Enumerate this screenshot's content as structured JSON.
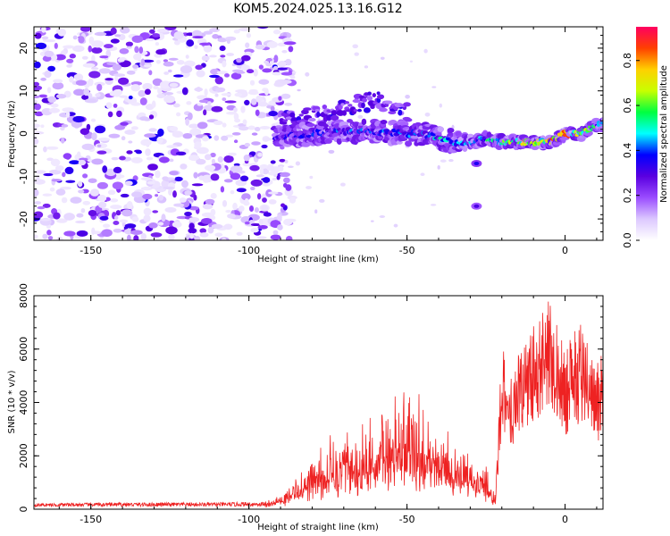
{
  "title": "KOM5.2024.025.13.16.G12",
  "chart_data": [
    {
      "type": "heatmap",
      "xlabel": "Height of straight line (km)",
      "ylabel": "Frequency (Hz)",
      "xlim": [
        -168,
        12
      ],
      "ylim": [
        -25,
        25
      ],
      "x_ticks": [
        -150,
        -100,
        -50,
        0
      ],
      "y_ticks": [
        -20,
        -10,
        0,
        10,
        20
      ],
      "colorbar": {
        "label": "Normalized spectral amplitude",
        "range": [
          0,
          0.95
        ],
        "ticks": [
          "0.0",
          "0.2",
          "0.4",
          "0.6",
          "0.8"
        ],
        "colors": [
          "#ffffff",
          "#dcc8ff",
          "#9a4cff",
          "#5a00e0",
          "#0000ff",
          "#00ffff",
          "#00ff40",
          "#c8ff00",
          "#ffd000",
          "#ff4000",
          "#ff0060"
        ]
      },
      "signal_ridge": {
        "x": [
          -92,
          -80,
          -70,
          -60,
          -50,
          -45,
          -40,
          -35,
          -30,
          -25,
          -20,
          -15,
          -10,
          -5,
          0,
          5,
          10
        ],
        "freq": [
          -1,
          0,
          0.5,
          0.5,
          0,
          0,
          -1,
          -2,
          -2.5,
          -1,
          -2,
          -2,
          -2,
          -2,
          0,
          0,
          2
        ],
        "amplitude": [
          0.35,
          0.4,
          0.45,
          0.45,
          0.45,
          0.5,
          0.55,
          0.5,
          0.45,
          0.6,
          0.65,
          0.75,
          0.85,
          0.9,
          0.95,
          0.7,
          0.6
        ]
      },
      "upper_branch": {
        "x": [
          -90,
          -80,
          -70,
          -60,
          -50
        ],
        "freq": [
          3,
          4,
          6,
          8,
          5
        ]
      },
      "isolated_blobs": [
        {
          "x": -28,
          "freq": -17,
          "amplitude": 0.3
        },
        {
          "x": -28,
          "freq": -7,
          "amplitude": 0.35
        }
      ],
      "noise_region_x": [
        -168,
        -92
      ]
    },
    {
      "type": "line",
      "xlabel": "Height of straight line (km)",
      "ylabel": "SNR (10 * v/v)",
      "xlim": [
        -168,
        12
      ],
      "ylim": [
        0,
        8000
      ],
      "x_ticks": [
        -150,
        -100,
        -50,
        0
      ],
      "y_ticks": [
        0,
        2000,
        4000,
        6000,
        8000
      ],
      "color": "#ee2222",
      "envelope": {
        "x": [
          -168,
          -140,
          -110,
          -95,
          -88,
          -80,
          -70,
          -60,
          -55,
          -50,
          -45,
          -40,
          -35,
          -30,
          -25,
          -22,
          -20,
          -18,
          -15,
          -10,
          -5,
          0,
          5,
          10,
          12
        ],
        "y": [
          200,
          250,
          250,
          300,
          700,
          2000,
          2500,
          3000,
          4000,
          4600,
          3200,
          3000,
          2600,
          2300,
          1500,
          500,
          6500,
          4500,
          6000,
          7000,
          8000,
          6000,
          7300,
          5500,
          6000
        ]
      }
    }
  ]
}
